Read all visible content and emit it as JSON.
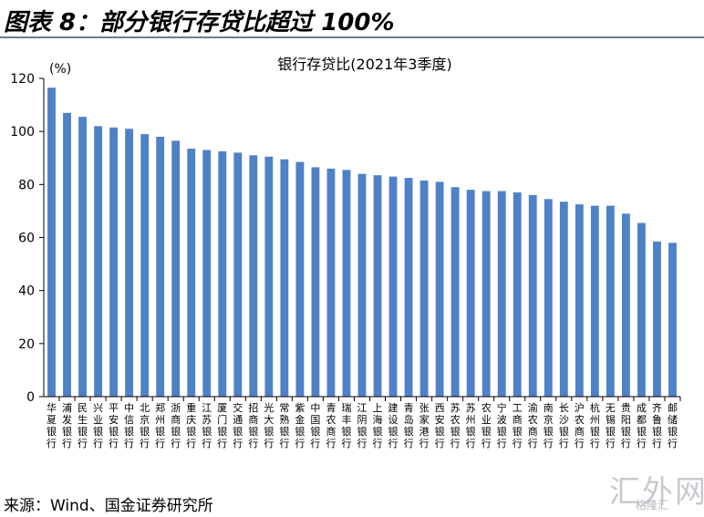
{
  "figure": {
    "title": "图表 8：部分银行存贷比超过 100%",
    "source": "来源：Wind、国金证券研究所"
  },
  "watermark": {
    "text": "汇外网",
    "brand": "格隆汇"
  },
  "chart_data": {
    "type": "bar",
    "title": "银行存贷比(2021年3季度)",
    "unit_label": "(%)",
    "xlabel": "",
    "ylabel": "",
    "ylim": [
      0,
      120
    ],
    "yticks": [
      0,
      20,
      40,
      60,
      80,
      100,
      120
    ],
    "grid": false,
    "legend": "none",
    "bar_color": "#4f81c7",
    "categories": [
      "华夏银行",
      "浦发银行",
      "民生银行",
      "兴业银行",
      "平安银行",
      "中信银行",
      "北京银行",
      "郑州银行",
      "浙商银行",
      "重庆银行",
      "江苏银行",
      "厦门银行",
      "交通银行",
      "招商银行",
      "光大银行",
      "常熟银行",
      "紫金银行",
      "中国银行",
      "青农商行",
      "瑞丰银行",
      "江阴银行",
      "上海银行",
      "建设银行",
      "青岛银行",
      "张家港行",
      "西安银行",
      "苏农银行",
      "苏州银行",
      "农业银行",
      "宁波银行",
      "工商银行",
      "渝农商行",
      "南京银行",
      "长沙银行",
      "沪农商行",
      "杭州银行",
      "无锡银行",
      "贵阳银行",
      "成都银行",
      "齐鲁银行",
      "邮储银行"
    ],
    "values": [
      116.5,
      107,
      105.5,
      102,
      101.5,
      101,
      99,
      98,
      96.5,
      93.5,
      93,
      92.5,
      92,
      91,
      90.5,
      89.5,
      88.5,
      86.5,
      86,
      85.5,
      84,
      83.5,
      83,
      82.5,
      81.5,
      81,
      79,
      78,
      77.5,
      77.5,
      77,
      76,
      74.5,
      73.5,
      72.5,
      72,
      72,
      69,
      65.5,
      58.5,
      58
    ]
  }
}
